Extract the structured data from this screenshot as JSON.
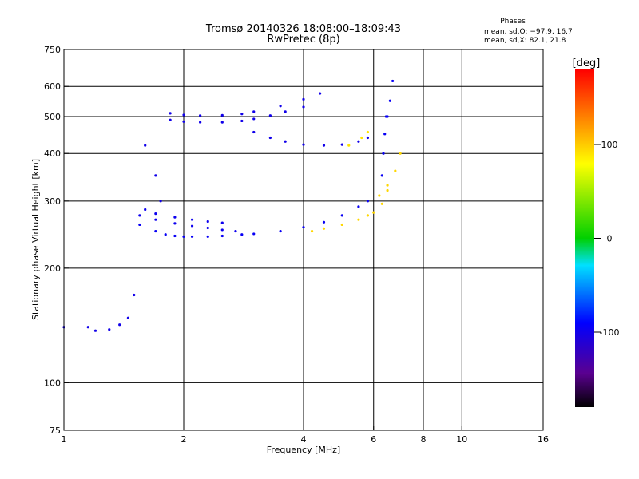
{
  "chart_data": {
    "type": "scatter",
    "title": "Tromsø 20140326 18:08:00–18:09:43",
    "subtitle": "RwPretec (8p)",
    "xlabel": "Frequency [MHz]",
    "ylabel": "Stationary phase Virtual Height [km]",
    "xscale": "log",
    "yscale": "log",
    "xlim": [
      1,
      16
    ],
    "ylim": [
      75,
      750
    ],
    "xticks": [
      1,
      2,
      4,
      6,
      8,
      10,
      16
    ],
    "yticks": [
      75,
      100,
      200,
      300,
      400,
      500,
      600,
      750
    ],
    "grid_x": [
      2,
      4,
      6,
      8,
      10
    ],
    "grid_y": [
      100,
      200,
      300,
      400,
      500,
      600
    ],
    "grid": true,
    "phase_stats": {
      "title": "Phases",
      "line1": "mean, sd,O: −97.9, 16.7",
      "line2": "mean, sd,X:  82.1, 21.8"
    },
    "colorbar": {
      "unit_label": "[deg]",
      "ticks": [
        100,
        0,
        -100
      ],
      "range": [
        -180,
        180
      ],
      "colormap": "rainbow (black-purple-blue-cyan-green-yellow-red)"
    },
    "traces": [
      {
        "name": "",
        "phase": -100,
        "x": [
          1.0,
          1.15,
          1.2,
          1.3,
          1.38,
          1.45,
          1.5
        ],
        "y": [
          140,
          140,
          137,
          138,
          142,
          148,
          170
        ]
      },
      {
        "name": "",
        "phase": -95,
        "x": [
          1.55,
          1.7,
          1.8,
          1.9,
          2.0,
          2.1,
          2.3,
          2.5,
          2.8,
          3.0,
          3.5,
          4.0,
          4.5,
          5.0,
          5.5,
          5.8
        ],
        "y": [
          260,
          250,
          245,
          243,
          242,
          242,
          242,
          243,
          245,
          246,
          250,
          256,
          264,
          275,
          290,
          300
        ]
      },
      {
        "name": "",
        "phase": -98,
        "x": [
          1.55,
          1.7,
          1.9,
          2.1,
          2.3,
          2.5,
          2.7
        ],
        "y": [
          275,
          268,
          262,
          258,
          255,
          252,
          250
        ]
      },
      {
        "name": "",
        "phase": -98,
        "x": [
          1.6,
          1.7,
          1.9,
          2.1,
          2.3,
          2.5
        ],
        "y": [
          285,
          278,
          272,
          268,
          265,
          263
        ]
      },
      {
        "name": "",
        "phase": -100,
        "x": [
          1.6,
          1.7,
          1.75
        ],
        "y": [
          420,
          350,
          300
        ]
      },
      {
        "name": "",
        "phase": -100,
        "x": [
          1.85,
          2.0,
          2.2,
          2.5,
          2.8,
          3.0,
          3.3,
          3.6,
          4.0
        ],
        "y": [
          490,
          485,
          483,
          483,
          487,
          493,
          503,
          515,
          530
        ]
      },
      {
        "name": "",
        "phase": -100,
        "x": [
          1.85,
          2.0,
          2.2,
          2.5,
          2.8,
          3.0,
          3.5,
          4.0,
          4.4
        ],
        "y": [
          510,
          505,
          503,
          504,
          508,
          515,
          533,
          555,
          575
        ]
      },
      {
        "name": "",
        "phase": -100,
        "x": [
          3.0,
          3.3,
          3.6,
          4.0,
          4.5,
          5.0,
          5.5,
          5.8
        ],
        "y": [
          455,
          440,
          430,
          422,
          420,
          422,
          430,
          440
        ]
      },
      {
        "name": "",
        "phase": 95,
        "x": [
          4.2,
          4.5,
          5.0,
          5.5,
          5.8,
          6.0,
          6.3,
          6.5
        ],
        "y": [
          250,
          254,
          260,
          268,
          275,
          280,
          295,
          320
        ]
      },
      {
        "name": "",
        "phase": 90,
        "x": [
          5.2,
          5.6,
          5.8
        ],
        "y": [
          420,
          440,
          455
        ]
      },
      {
        "name": "",
        "phase": 95,
        "x": [
          6.2,
          6.5,
          6.8,
          7.0
        ],
        "y": [
          310,
          330,
          360,
          400
        ]
      },
      {
        "name": "",
        "phase": -95,
        "x": [
          6.3,
          6.35,
          6.4,
          6.45
        ],
        "y": [
          350,
          400,
          450,
          500
        ]
      },
      {
        "name": "",
        "phase": -95,
        "x": [
          6.5,
          6.6,
          6.7
        ],
        "y": [
          500,
          550,
          620
        ]
      }
    ]
  }
}
